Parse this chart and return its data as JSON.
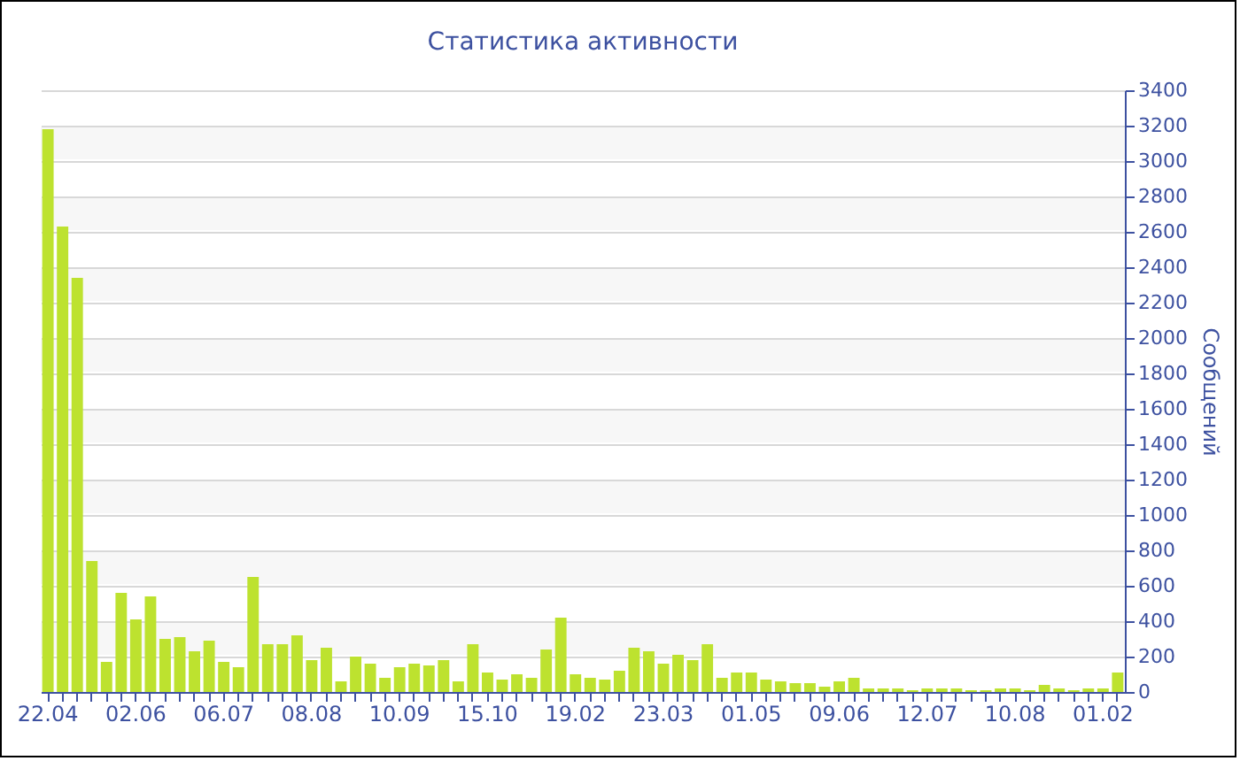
{
  "chart_data": {
    "type": "bar",
    "title": "Статистика активности",
    "ylabel": "Сообщений",
    "categories": [
      "22.04",
      null,
      null,
      null,
      null,
      null,
      "02.06",
      null,
      null,
      null,
      null,
      null,
      "06.07",
      null,
      null,
      null,
      null,
      null,
      "08.08",
      null,
      null,
      null,
      null,
      null,
      "10.09",
      null,
      null,
      null,
      null,
      null,
      "15.10",
      null,
      null,
      null,
      null,
      null,
      "19.02",
      null,
      null,
      null,
      null,
      null,
      "23.03",
      null,
      null,
      null,
      null,
      null,
      "01.05",
      null,
      null,
      null,
      null,
      null,
      "09.06",
      null,
      null,
      null,
      null,
      null,
      "12.07",
      null,
      null,
      null,
      null,
      null,
      "10.08",
      null,
      null,
      null,
      null,
      null,
      "01.02",
      null
    ],
    "values": [
      3180,
      2630,
      2340,
      740,
      170,
      560,
      410,
      540,
      300,
      310,
      230,
      290,
      170,
      140,
      650,
      270,
      270,
      320,
      180,
      250,
      60,
      200,
      160,
      80,
      140,
      160,
      150,
      180,
      60,
      270,
      110,
      70,
      100,
      80,
      240,
      420,
      100,
      80,
      70,
      120,
      250,
      230,
      160,
      210,
      180,
      270,
      80,
      110,
      110,
      70,
      60,
      50,
      50,
      30,
      60,
      80,
      20,
      20,
      20,
      10,
      20,
      20,
      20,
      10,
      10,
      20,
      20,
      10,
      40,
      20,
      10,
      20,
      20,
      110
    ],
    "color": "#bde22f",
    "ylim": [
      0,
      3400
    ],
    "yticks": [
      0,
      200,
      400,
      600,
      800,
      1000,
      1200,
      1400,
      1600,
      1800,
      2000,
      2200,
      2400,
      2600,
      2800,
      3000,
      3200,
      3400
    ],
    "grid": "y"
  }
}
